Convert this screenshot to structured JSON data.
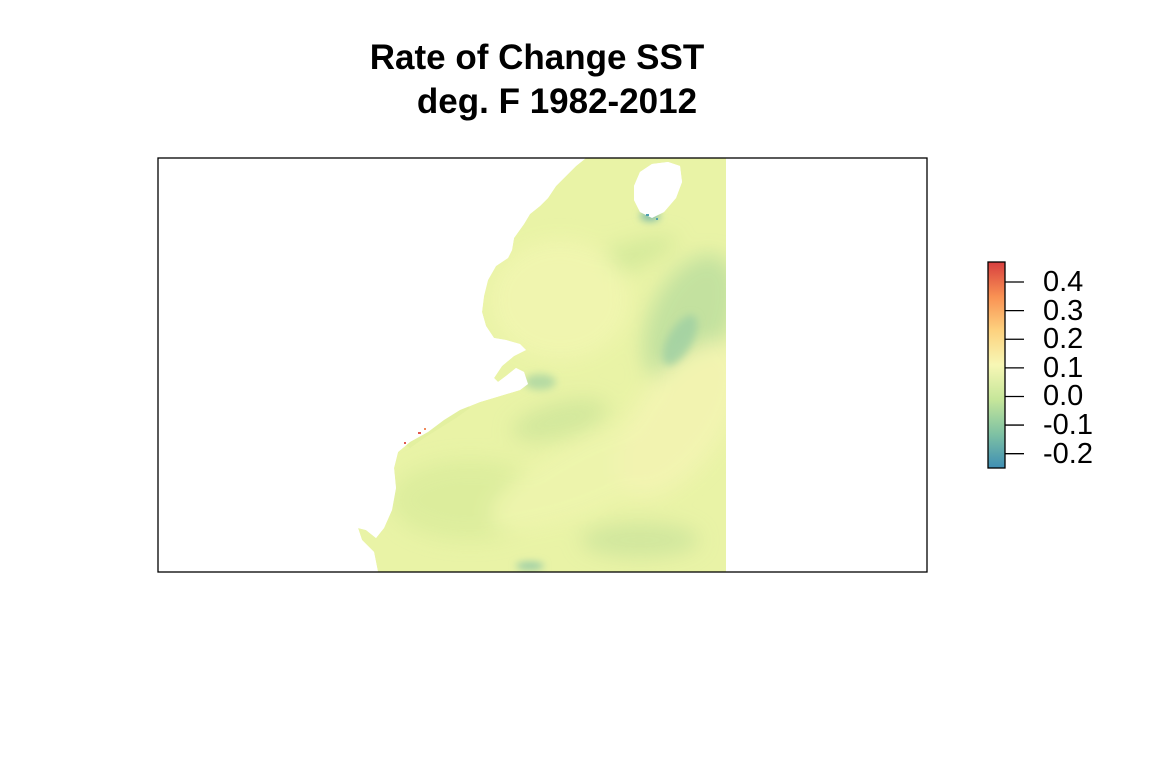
{
  "title": {
    "line1": "Rate of Change SST",
    "line2": "deg. F 1982-2012"
  },
  "legend": {
    "ticks": [
      "0.4",
      "0.3",
      "0.2",
      "0.1",
      "0.0",
      "-0.1",
      "-0.2"
    ],
    "tick_values": [
      0.4,
      0.3,
      0.2,
      0.1,
      0.0,
      -0.1,
      -0.2
    ],
    "range": [
      -0.25,
      0.47
    ],
    "palette": [
      "#3f8fb4",
      "#7fc2a3",
      "#c6e69a",
      "#f7f7b5",
      "#fdd27f",
      "#f99153",
      "#d73f3f"
    ]
  },
  "map": {
    "ocean_color": "#e9f3a6",
    "ocean_variation_color": "#d6eb9a",
    "cool_patch_color": "#9fd0a4",
    "warm_patch_color": "#f6f3b2",
    "hot_spot_color": "#e0584f",
    "land_color": "#ffffff"
  }
}
